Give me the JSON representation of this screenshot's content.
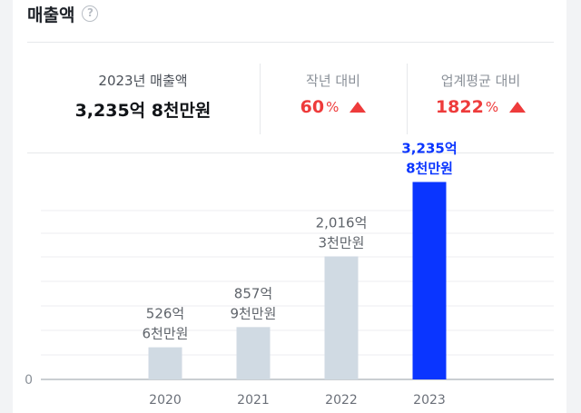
{
  "header": {
    "title": "매출액",
    "help_icon": "question-circle-icon"
  },
  "summary": {
    "revenue_label": "2023년 매출액",
    "revenue_value": "3,235억 8천만원",
    "yoy_label": "작년 대비",
    "yoy_value": "60",
    "yoy_unit": "%",
    "yoy_icon": "up-triangle-icon",
    "industry_label": "업계평균 대비",
    "industry_value": "1822",
    "industry_unit": "%",
    "industry_icon": "up-triangle-icon"
  },
  "colors": {
    "highlight_bar": "#0a35ff",
    "normal_bar": "#d0dae3",
    "increase_red": "#ee3b3b"
  },
  "chart_data": {
    "type": "bar",
    "categories": [
      "2020",
      "2021",
      "2022",
      "2023"
    ],
    "values": [
      526.6,
      857.9,
      2016.3,
      3235.8
    ],
    "value_unit": "억원",
    "data_labels": [
      [
        "526억",
        "6천만원"
      ],
      [
        "857억",
        "9천만원"
      ],
      [
        "2,016억",
        "3천만원"
      ],
      [
        "3,235억",
        "8천만원"
      ]
    ],
    "highlight_index": 3,
    "y_tick_labels": [
      "0"
    ],
    "ylim": [
      0,
      3600
    ],
    "grid": true
  }
}
